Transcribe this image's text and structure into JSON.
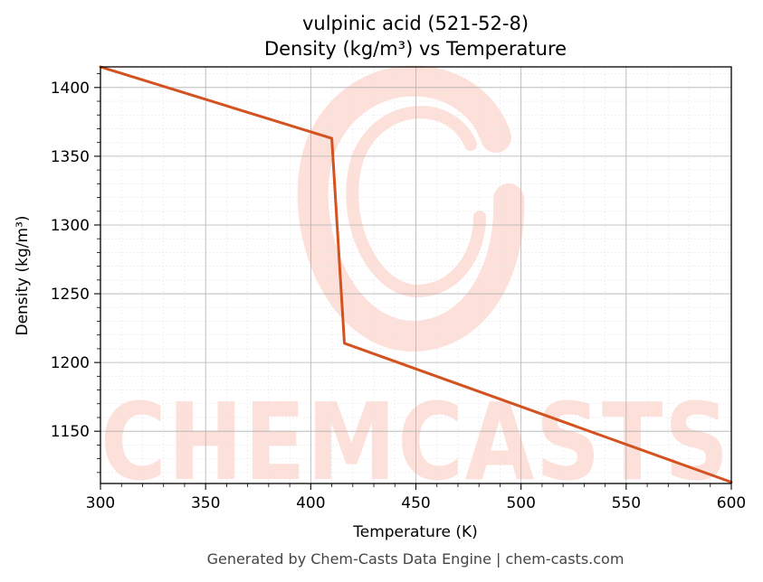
{
  "chart_data": {
    "type": "line",
    "title": "vulpinic acid (521-52-8)",
    "subtitle": "Density (kg/m³) vs Temperature",
    "xlabel": "Temperature (K)",
    "ylabel": "Density (kg/m³)",
    "xlim": [
      300,
      600
    ],
    "ylim": [
      1112,
      1415
    ],
    "xticks": [
      300,
      350,
      400,
      450,
      500,
      550,
      600
    ],
    "yticks": [
      1150,
      1200,
      1250,
      1300,
      1350,
      1400
    ],
    "grid": true,
    "series": [
      {
        "color": "#d4521f",
        "x": [
          300,
          410,
          416,
          600
        ],
        "y": [
          1415,
          1363,
          1214,
          1113
        ]
      }
    ]
  },
  "watermark": {
    "text": "CHEMCASTS",
    "color": "#fde0da"
  },
  "footer": "Generated by Chem-Casts Data Engine | chem-casts.com"
}
